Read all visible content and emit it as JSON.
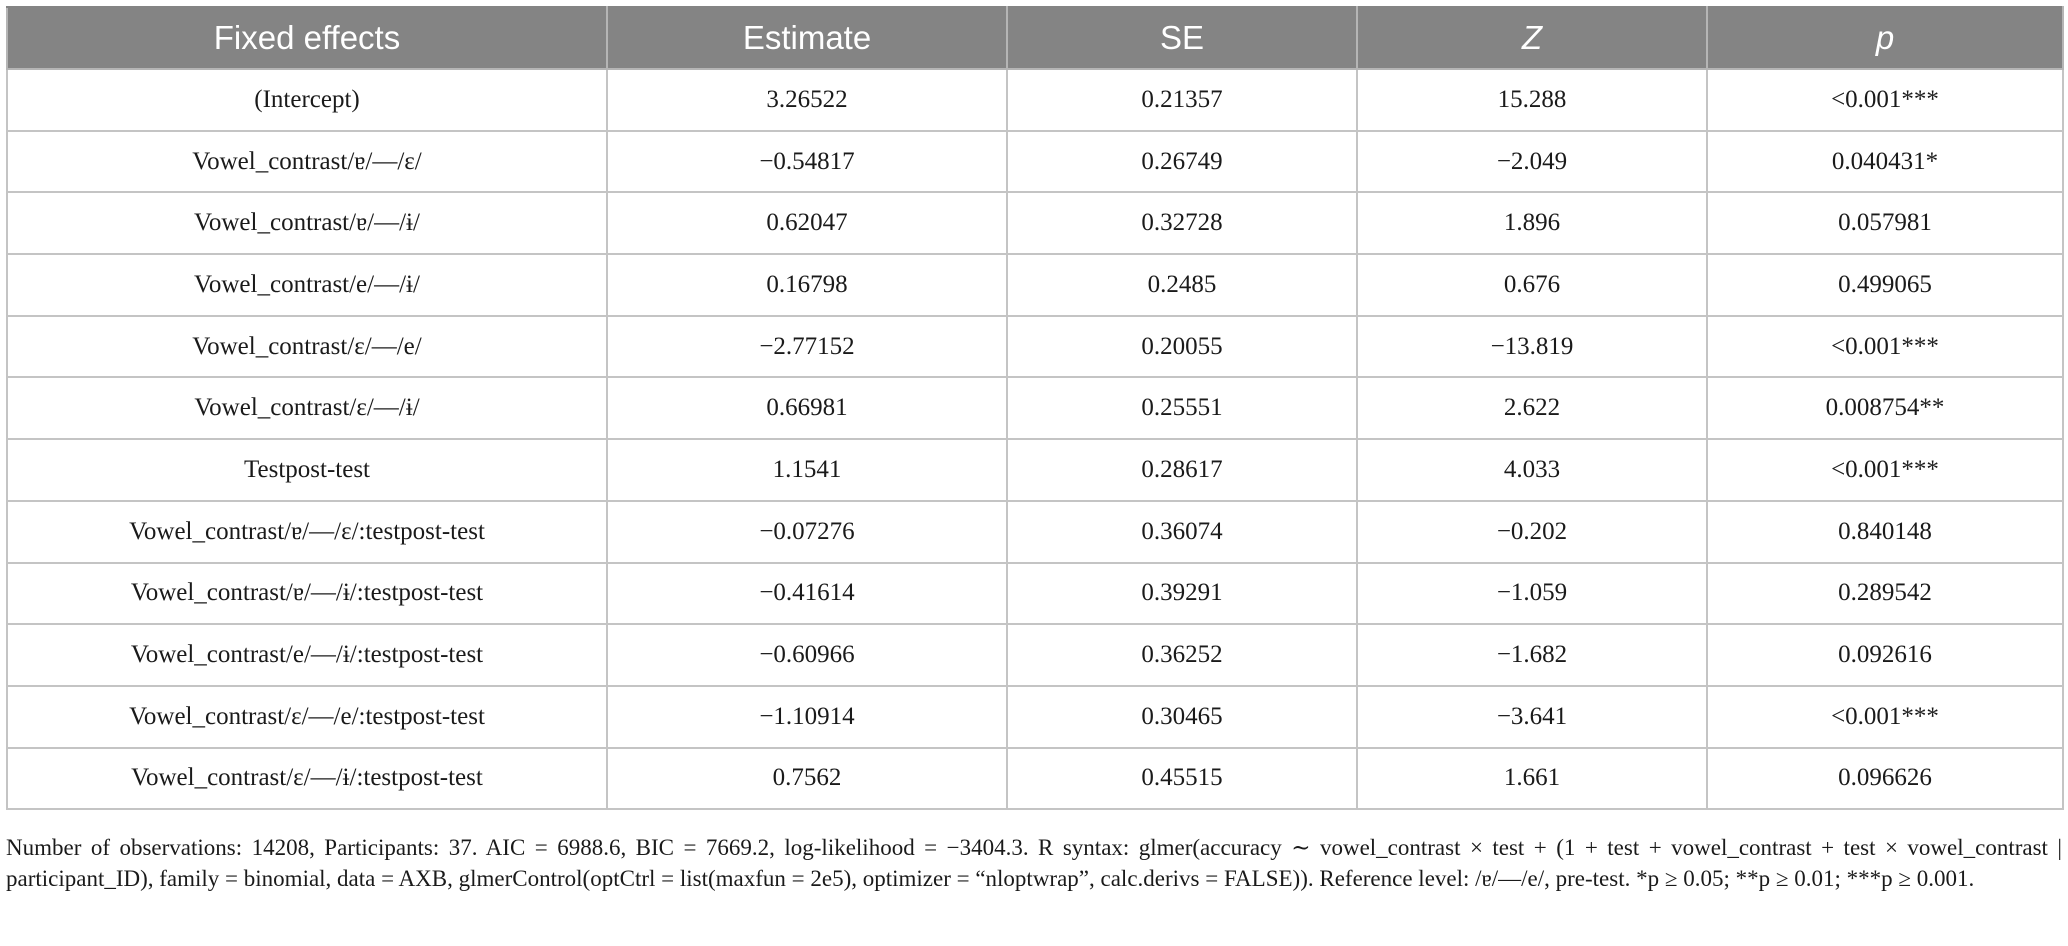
{
  "table": {
    "headers": [
      "Fixed effects",
      "Estimate",
      "SE",
      "Z",
      "p"
    ],
    "rows": [
      [
        "(Intercept)",
        "3.26522",
        "0.21357",
        "15.288",
        "<0.001***"
      ],
      [
        "Vowel_contrast/ɐ/—/ɛ/",
        "−0.54817",
        "0.26749",
        "−2.049",
        "0.040431*"
      ],
      [
        "Vowel_contrast/ɐ/—/ɨ/",
        "0.62047",
        "0.32728",
        "1.896",
        "0.057981"
      ],
      [
        "Vowel_contrast/e/—/ɨ/",
        "0.16798",
        "0.2485",
        "0.676",
        "0.499065"
      ],
      [
        "Vowel_contrast/ɛ/—/e/",
        "−2.77152",
        "0.20055",
        "−13.819",
        "<0.001***"
      ],
      [
        "Vowel_contrast/ɛ/—/ɨ/",
        "0.66981",
        "0.25551",
        "2.622",
        "0.008754**"
      ],
      [
        "Testpost-test",
        "1.1541",
        "0.28617",
        "4.033",
        "<0.001***"
      ],
      [
        "Vowel_contrast/ɐ/—/ɛ/:testpost-test",
        "−0.07276",
        "0.36074",
        "−0.202",
        "0.840148"
      ],
      [
        "Vowel_contrast/ɐ/—/ɨ/:testpost-test",
        "−0.41614",
        "0.39291",
        "−1.059",
        "0.289542"
      ],
      [
        "Vowel_contrast/e/—/ɨ/:testpost-test",
        "−0.60966",
        "0.36252",
        "−1.682",
        "0.092616"
      ],
      [
        "Vowel_contrast/ɛ/—/e/:testpost-test",
        "−1.10914",
        "0.30465",
        "−3.641",
        "<0.001***"
      ],
      [
        "Vowel_contrast/ɛ/—/ɨ/:testpost-test",
        "0.7562",
        "0.45515",
        "1.661",
        "0.096626"
      ]
    ]
  },
  "footnote": "Number of observations: 14208, Participants: 37. AIC = 6988.6, BIC = 7669.2, log-likelihood = −3404.3. R syntax: glmer(accuracy ∼ vowel_contrast × test + (1 + test + vowel_contrast + test × vowel_contrast | participant_ID), family = binomial, data = AXB, glmerControl(optCtrl = list(maxfun = 2e5), optimizer = “nloptwrap”, calc.derivs = FALSE)). Reference level: /ɐ/—/e/, pre-test. *p ≥ 0.05; **p ≥ 0.01; ***p ≥ 0.001.",
  "colors": {
    "header_background": "#848484",
    "header_text": "#ffffff",
    "grid_lines": "#c4c4c4",
    "body_text": "#1a1a1a"
  }
}
